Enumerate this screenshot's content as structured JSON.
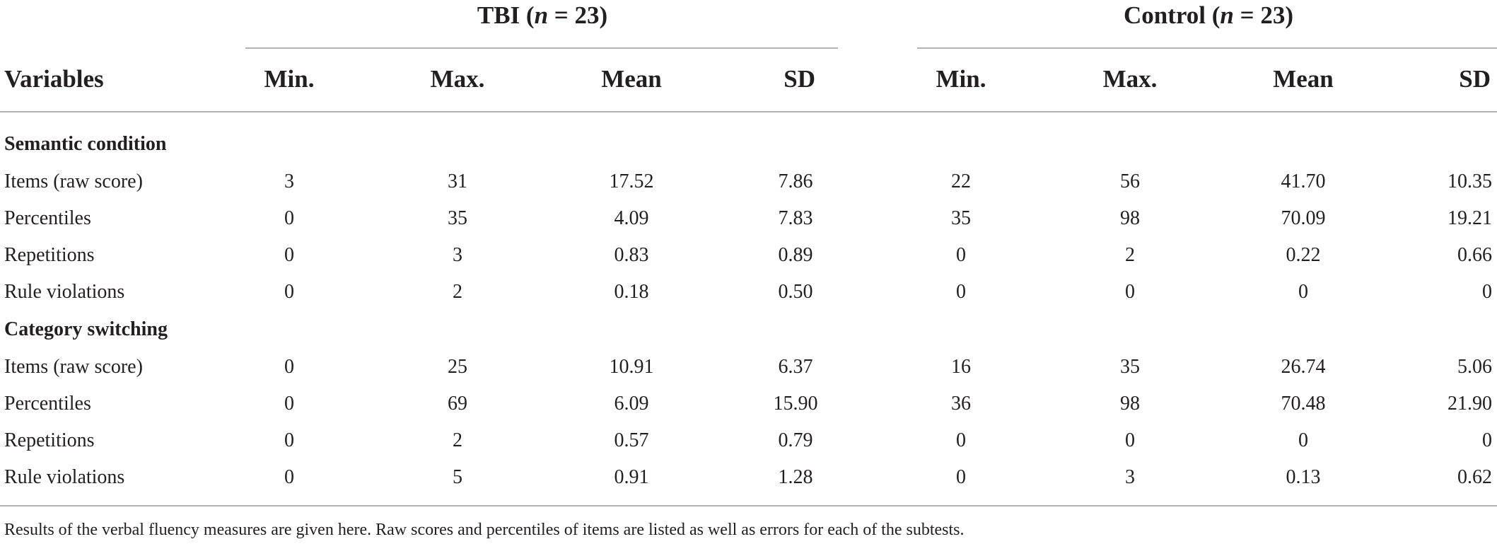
{
  "groups": {
    "tbi": {
      "name": "TBI",
      "n_prefix": "(",
      "n_italic": "n",
      "n_suffix": " = 23)"
    },
    "control": {
      "name": "Control",
      "n_prefix": "(",
      "n_italic": "n",
      "n_suffix": " = 23)"
    }
  },
  "headers": {
    "variables": "Variables",
    "min": "Min.",
    "max": "Max.",
    "mean": "Mean",
    "sd": "SD"
  },
  "sections": [
    {
      "title": "Semantic condition",
      "rows": [
        {
          "label": "Items (raw score)",
          "tbi": [
            "3",
            "31",
            "17.52",
            "7.86"
          ],
          "control": [
            "22",
            "56",
            "41.70",
            "10.35"
          ]
        },
        {
          "label": "Percentiles",
          "tbi": [
            "0",
            "35",
            "4.09",
            "7.83"
          ],
          "control": [
            "35",
            "98",
            "70.09",
            "19.21"
          ]
        },
        {
          "label": "Repetitions",
          "tbi": [
            "0",
            "3",
            "0.83",
            "0.89"
          ],
          "control": [
            "0",
            "2",
            "0.22",
            "0.66"
          ]
        },
        {
          "label": "Rule violations",
          "tbi": [
            "0",
            "2",
            "0.18",
            "0.50"
          ],
          "control": [
            "0",
            "0",
            "0",
            "0"
          ]
        }
      ]
    },
    {
      "title": "Category switching",
      "rows": [
        {
          "label": "Items (raw score)",
          "tbi": [
            "0",
            "25",
            "10.91",
            "6.37"
          ],
          "control": [
            "16",
            "35",
            "26.74",
            "5.06"
          ]
        },
        {
          "label": "Percentiles",
          "tbi": [
            "0",
            "69",
            "6.09",
            "15.90"
          ],
          "control": [
            "36",
            "98",
            "70.48",
            "21.90"
          ]
        },
        {
          "label": "Repetitions",
          "tbi": [
            "0",
            "2",
            "0.57",
            "0.79"
          ],
          "control": [
            "0",
            "0",
            "0",
            "0"
          ]
        },
        {
          "label": "Rule violations",
          "tbi": [
            "0",
            "5",
            "0.91",
            "1.28"
          ],
          "control": [
            "0",
            "3",
            "0.13",
            "0.62"
          ]
        }
      ]
    }
  ],
  "footnote": "Results of the verbal fluency measures are given here. Raw scores and percentiles of items are listed as well as errors for each of the subtests."
}
